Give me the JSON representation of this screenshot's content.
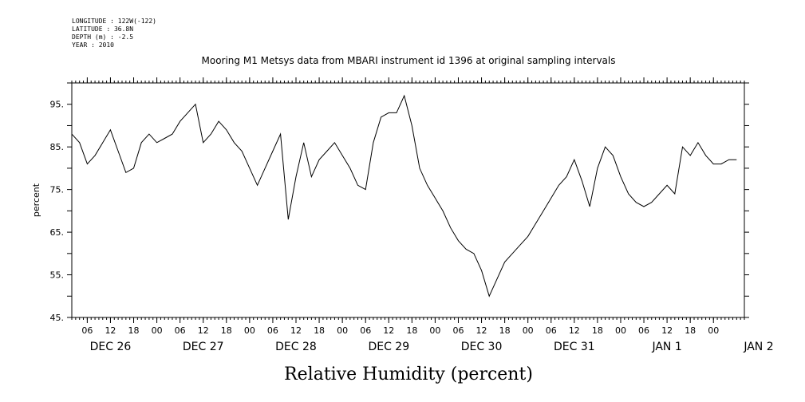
{
  "header": {
    "longitude": "LONGITUDE : 122W(-122)",
    "latitude": "LATITUDE : 36.8N",
    "depth": "DEPTH (m) : -2.5",
    "year": "YEAR : 2010"
  },
  "chart_data": {
    "type": "line",
    "title": "Mooring M1 Metsys data from MBARI instrument id 1396 at original sampling intervals",
    "xlabel": "Relative Humidity (percent)",
    "ylabel": "percent",
    "ylim": [
      45,
      100
    ],
    "y_ticks": [
      45,
      55,
      65,
      75,
      85,
      95
    ],
    "y_tick_labels": [
      "45.",
      "55.",
      "65.",
      "75.",
      "85.",
      "95."
    ],
    "x_range_hours": [
      "2010-12-26 02:00",
      "2011-01-02 08:00"
    ],
    "hour_tick_labels": [
      "06",
      "12",
      "18",
      "00",
      "06",
      "12",
      "18",
      "00",
      "06",
      "12",
      "18",
      "00",
      "06",
      "12",
      "18",
      "00",
      "06",
      "12",
      "18",
      "00",
      "06",
      "12",
      "18",
      "00",
      "06",
      "12",
      "18",
      "00"
    ],
    "day_labels": [
      {
        "text": "DEC 26",
        "at": "2010-12-26 12:00"
      },
      {
        "text": "DEC 27",
        "at": "2010-12-27 12:00"
      },
      {
        "text": "DEC 28",
        "at": "2010-12-28 12:00"
      },
      {
        "text": "DEC 29",
        "at": "2010-12-29 12:00"
      },
      {
        "text": "DEC 30",
        "at": "2010-12-30 12:00"
      },
      {
        "text": "DEC 31",
        "at": "2010-12-31 12:00"
      },
      {
        "text": "JAN  1",
        "at": "2011-01-01 12:00"
      },
      {
        "text": "JAN  2",
        "at": "2011-01-02 12:00"
      }
    ],
    "grid": false,
    "series": [
      {
        "x": [
          "2010-12-26 02:00",
          "2010-12-26 04:00",
          "2010-12-26 06:00",
          "2010-12-26 08:00",
          "2010-12-26 10:00",
          "2010-12-26 12:00",
          "2010-12-26 14:00",
          "2010-12-26 16:00",
          "2010-12-26 18:00",
          "2010-12-26 20:00",
          "2010-12-26 22:00",
          "2010-12-27 00:00",
          "2010-12-27 02:00",
          "2010-12-27 04:00",
          "2010-12-27 06:00",
          "2010-12-27 08:00",
          "2010-12-27 10:00",
          "2010-12-27 12:00",
          "2010-12-27 14:00",
          "2010-12-27 16:00",
          "2010-12-27 18:00",
          "2010-12-27 20:00",
          "2010-12-27 22:00",
          "2010-12-28 00:00",
          "2010-12-28 02:00",
          "2010-12-28 04:00",
          "2010-12-28 06:00",
          "2010-12-28 08:00",
          "2010-12-28 10:00",
          "2010-12-28 12:00",
          "2010-12-28 14:00",
          "2010-12-28 16:00",
          "2010-12-28 18:00",
          "2010-12-28 20:00",
          "2010-12-28 22:00",
          "2010-12-29 00:00",
          "2010-12-29 02:00",
          "2010-12-29 04:00",
          "2010-12-29 06:00",
          "2010-12-29 08:00",
          "2010-12-29 10:00",
          "2010-12-29 12:00",
          "2010-12-29 14:00",
          "2010-12-29 16:00",
          "2010-12-29 18:00",
          "2010-12-29 20:00",
          "2010-12-29 22:00",
          "2010-12-30 00:00",
          "2010-12-30 02:00",
          "2010-12-30 04:00",
          "2010-12-30 06:00",
          "2010-12-30 08:00",
          "2010-12-30 10:00",
          "2010-12-30 12:00",
          "2010-12-30 14:00",
          "2010-12-30 16:00",
          "2010-12-30 18:00",
          "2010-12-30 20:00",
          "2010-12-30 22:00",
          "2010-12-31 00:00",
          "2010-12-31 02:00",
          "2010-12-31 04:00",
          "2010-12-31 06:00",
          "2010-12-31 08:00",
          "2010-12-31 10:00",
          "2010-12-31 12:00",
          "2010-12-31 14:00",
          "2010-12-31 16:00",
          "2010-12-31 18:00",
          "2010-12-31 20:00",
          "2010-12-31 22:00",
          "2011-01-01 00:00",
          "2011-01-01 02:00",
          "2011-01-01 04:00",
          "2011-01-01 06:00",
          "2011-01-01 08:00",
          "2011-01-01 10:00",
          "2011-01-01 12:00",
          "2011-01-01 14:00",
          "2011-01-01 16:00",
          "2011-01-01 18:00",
          "2011-01-01 20:00",
          "2011-01-01 22:00",
          "2011-01-02 00:00",
          "2011-01-02 02:00",
          "2011-01-02 04:00",
          "2011-01-02 06:00"
        ],
        "values": [
          88,
          86,
          81,
          83,
          86,
          89,
          84,
          79,
          80,
          86,
          88,
          86,
          87,
          88,
          91,
          93,
          95,
          86,
          88,
          91,
          89,
          86,
          84,
          80,
          76,
          80,
          84,
          88,
          68,
          78,
          86,
          78,
          82,
          84,
          86,
          83,
          80,
          76,
          75,
          86,
          92,
          93,
          93,
          97,
          90,
          80,
          76,
          73,
          70,
          66,
          63,
          61,
          60,
          56,
          50,
          54,
          58,
          60,
          62,
          64,
          67,
          70,
          73,
          76,
          78,
          82,
          77,
          71,
          80,
          85,
          83,
          78,
          74,
          72,
          71,
          72,
          74,
          76,
          74,
          85,
          83,
          86,
          83,
          81,
          81,
          82,
          82
        ]
      }
    ]
  }
}
